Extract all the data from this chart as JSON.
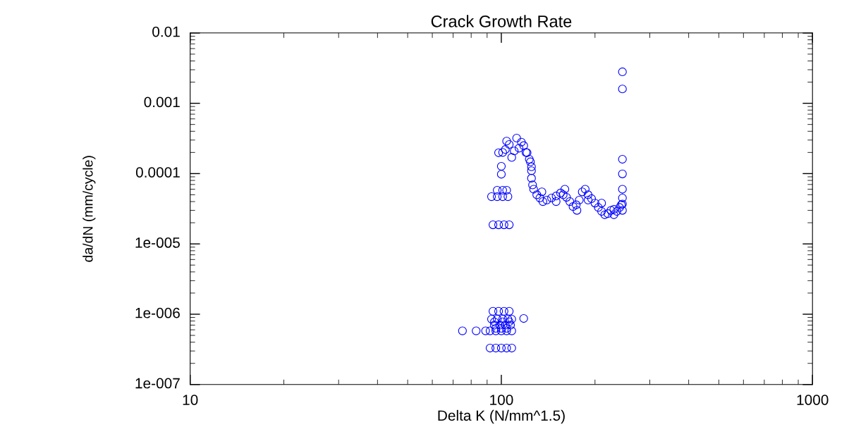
{
  "chart_data": {
    "type": "scatter",
    "title": "Crack Growth Rate",
    "xlabel": "Delta K (N/mm^1.5)",
    "ylabel": "da/dN (mm/cycle)",
    "log": "xy",
    "grid": false,
    "marker": "circle",
    "xlim": [
      10,
      1000
    ],
    "xticks": [
      10,
      100,
      1000
    ],
    "ylim": [
      1e-07,
      0.01
    ],
    "yticks": [
      0.01,
      0.001,
      0.0001,
      {
        "value": 1e-05,
        "label": "1e-005"
      },
      {
        "value": 1e-06,
        "label": "1e-006"
      },
      {
        "value": 1e-07,
        "label": "1e-007"
      }
    ],
    "series": [
      {
        "color": "#0000ff",
        "x": [
          75,
          83,
          89,
          92,
          96,
          100,
          104,
          108,
          92,
          96,
          100,
          104,
          108,
          94,
          98,
          102,
          106,
          93,
          97,
          101,
          105,
          108,
          118,
          95,
          99,
          103,
          107,
          96,
          100,
          104,
          95,
          101,
          106,
          94,
          98,
          102,
          106,
          93,
          97,
          101,
          105,
          97,
          101,
          104,
          100,
          100,
          98,
          101,
          104,
          106,
          103,
          108,
          110,
          112,
          114,
          116,
          118,
          120,
          121,
          123,
          124,
          125,
          125,
          125,
          126,
          127,
          130,
          133,
          136,
          140,
          145,
          150,
          155,
          158,
          162,
          166,
          170,
          174,
          178,
          182,
          186,
          190,
          195,
          200,
          205,
          210,
          215,
          220,
          225,
          230,
          235,
          240,
          243,
          245,
          245,
          245,
          245,
          245,
          245,
          245,
          245,
          135,
          150,
          160,
          175,
          190,
          210,
          230
        ],
        "values": [
          5.8e-07,
          5.8e-07,
          5.8e-07,
          5.8e-07,
          5.8e-07,
          5.8e-07,
          5.8e-07,
          5.8e-07,
          3.3e-07,
          3.3e-07,
          3.3e-07,
          3.3e-07,
          3.3e-07,
          1.1e-06,
          1.1e-06,
          1.1e-06,
          1.1e-06,
          8.5e-07,
          8.5e-07,
          8.5e-07,
          8.5e-07,
          8.5e-07,
          8.7e-07,
          7e-07,
          7e-07,
          7e-07,
          7e-07,
          6.3e-07,
          6.3e-07,
          6.3e-07,
          7.8e-07,
          7.8e-07,
          7.8e-07,
          1.87e-05,
          1.87e-05,
          1.87e-05,
          1.87e-05,
          4.7e-05,
          4.7e-05,
          4.7e-05,
          4.7e-05,
          5.8e-05,
          5.8e-05,
          5.8e-05,
          9.8e-05,
          0.000127,
          0.000198,
          0.0002,
          0.00029,
          0.00026,
          0.00022,
          0.00017,
          0.00021,
          0.00032,
          0.00023,
          0.00028,
          0.00025,
          0.0002,
          0.000198,
          0.00016,
          0.000147,
          0.000125,
          0.00011,
          8.6e-05,
          6.9e-05,
          6e-05,
          5e-05,
          4.5e-05,
          4e-05,
          4.2e-05,
          4.5e-05,
          4.8e-05,
          5.3e-05,
          5e-05,
          4.6e-05,
          4e-05,
          3.4e-05,
          3.6e-05,
          4.2e-05,
          5.5e-05,
          6e-05,
          5e-05,
          4.4e-05,
          3.8e-05,
          3.3e-05,
          2.9e-05,
          2.6e-05,
          2.7e-05,
          3e-05,
          3.1e-05,
          2.9e-05,
          3.3e-05,
          3.6e-05,
          0.0028,
          0.0016,
          0.00016,
          9.9e-05,
          6e-05,
          4.5e-05,
          3.7e-05,
          3e-05,
          5.5e-05,
          4e-05,
          6e-05,
          3e-05,
          4.2e-05,
          3.8e-05,
          2.6e-05
        ]
      }
    ]
  }
}
